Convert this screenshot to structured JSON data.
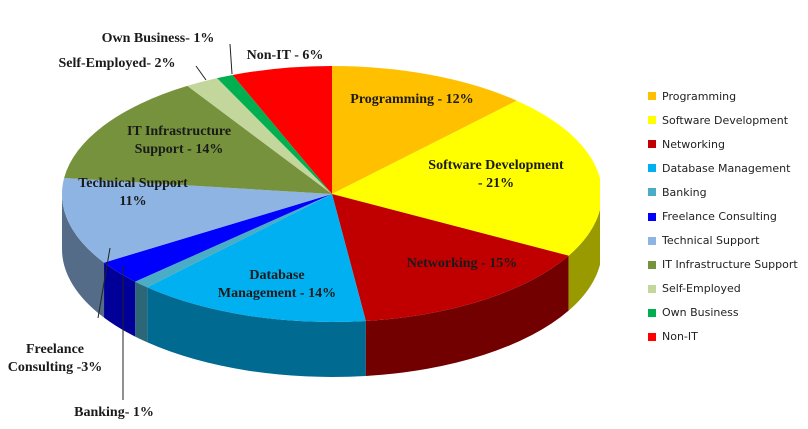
{
  "chart_data": {
    "type": "pie",
    "style": "3d-pie",
    "categories": [
      "Programming",
      "Software Development",
      "Networking",
      "Database Management",
      "Banking",
      "Freelance Consulting",
      "Technical Support",
      "IT Infrastructure Support",
      "Self-Employed",
      "Own Business",
      "Non-IT"
    ],
    "values": [
      12,
      21,
      15,
      14,
      1,
      3,
      11,
      14,
      2,
      1,
      6
    ],
    "data_labels": [
      "Programming - 12%",
      "Software Development - 21%",
      "Networking - 15%",
      "Database Management - 14%",
      "Banking- 1%",
      "Freelance Consulting -3%",
      "Technical Support - 11%",
      "IT Infrastructure Support - 14%",
      "Self-Employed- 2%",
      "Own Business- 1%",
      "Non-IT - 6%"
    ],
    "colors": [
      "#FFC000",
      "#FFFF00",
      "#C00000",
      "#00B0F0",
      "#4BACC6",
      "#0000FF",
      "#8DB4E2",
      "#76923C",
      "#C3D69B",
      "#00B050",
      "#FF0000"
    ],
    "legend": "right"
  }
}
